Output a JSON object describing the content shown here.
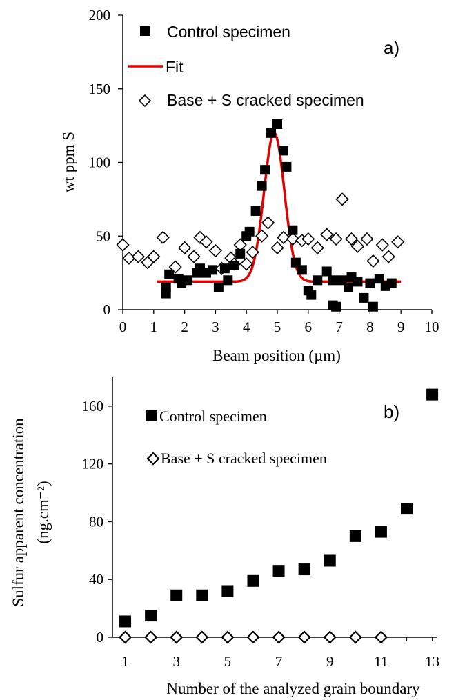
{
  "chart_data": [
    {
      "type": "scatter",
      "panel_label": "a)",
      "xlabel": "Beam position (µm)",
      "ylabel": "wt ppm S",
      "xlim": [
        0,
        10
      ],
      "ylim": [
        0,
        200
      ],
      "x_ticks": [
        "0",
        "1",
        "2",
        "3",
        "4",
        "5",
        "6",
        "7",
        "8",
        "9",
        "10"
      ],
      "y_ticks": [
        "0",
        "50",
        "100",
        "150",
        "200"
      ],
      "grid": false,
      "legend_position": "top",
      "series": [
        {
          "name": "Control specimen",
          "marker": "filled-square",
          "color": "#000000",
          "points": [
            [
              1.4,
              15
            ],
            [
              1.4,
              11
            ],
            [
              1.5,
              24
            ],
            [
              1.8,
              21
            ],
            [
              1.9,
              18
            ],
            [
              2.1,
              20
            ],
            [
              2.4,
              25
            ],
            [
              2.5,
              28
            ],
            [
              2.7,
              25
            ],
            [
              2.9,
              27
            ],
            [
              3.1,
              15
            ],
            [
              3.3,
              28
            ],
            [
              3.4,
              20
            ],
            [
              3.6,
              30
            ],
            [
              3.8,
              38
            ],
            [
              4.0,
              50
            ],
            [
              4.1,
              53
            ],
            [
              4.3,
              67
            ],
            [
              4.5,
              84
            ],
            [
              4.6,
              95
            ],
            [
              4.8,
              120
            ],
            [
              5.0,
              126
            ],
            [
              5.2,
              108
            ],
            [
              5.3,
              97
            ],
            [
              5.5,
              54
            ],
            [
              5.6,
              32
            ],
            [
              5.8,
              27
            ],
            [
              6.0,
              13
            ],
            [
              6.1,
              10
            ],
            [
              6.3,
              20
            ],
            [
              6.6,
              26
            ],
            [
              6.8,
              20
            ],
            [
              6.8,
              3
            ],
            [
              6.9,
              2
            ],
            [
              7.1,
              20
            ],
            [
              7.3,
              15
            ],
            [
              7.4,
              22
            ],
            [
              7.6,
              19
            ],
            [
              7.8,
              8
            ],
            [
              8.0,
              18
            ],
            [
              8.1,
              2
            ],
            [
              8.3,
              21
            ],
            [
              8.5,
              16
            ],
            [
              8.7,
              18
            ]
          ]
        },
        {
          "name": "Fit",
          "line": true,
          "color": "#e00000",
          "baseline": 19,
          "peak_height": 101,
          "peak_center": 4.9,
          "peak_sigma": 0.33,
          "x_range": [
            1.1,
            9.0
          ]
        },
        {
          "name": "Base + S cracked specimen",
          "marker": "open-diamond",
          "color": "#000000",
          "points": [
            [
              0.0,
              44
            ],
            [
              0.2,
              35
            ],
            [
              0.5,
              36
            ],
            [
              0.8,
              32
            ],
            [
              1.0,
              36
            ],
            [
              1.3,
              49
            ],
            [
              1.7,
              29
            ],
            [
              2.0,
              42
            ],
            [
              2.3,
              36
            ],
            [
              2.5,
              49
            ],
            [
              2.7,
              46
            ],
            [
              3.0,
              40
            ],
            [
              3.2,
              28
            ],
            [
              3.5,
              35
            ],
            [
              3.6,
              31
            ],
            [
              3.8,
              44
            ],
            [
              4.0,
              31
            ],
            [
              4.2,
              39
            ],
            [
              4.5,
              50
            ],
            [
              4.7,
              59
            ],
            [
              5.0,
              42
            ],
            [
              5.2,
              49
            ],
            [
              5.5,
              48
            ],
            [
              5.8,
              47
            ],
            [
              6.0,
              48
            ],
            [
              6.3,
              42
            ],
            [
              6.6,
              51
            ],
            [
              6.9,
              48
            ],
            [
              7.1,
              75
            ],
            [
              7.4,
              48
            ],
            [
              7.6,
              43
            ],
            [
              7.9,
              48
            ],
            [
              8.1,
              33
            ],
            [
              8.4,
              44
            ],
            [
              8.6,
              36
            ],
            [
              8.9,
              46
            ]
          ]
        }
      ]
    },
    {
      "type": "scatter",
      "panel_label": "b)",
      "xlabel": "Number of the analyzed grain boundary",
      "ylabel": [
        "Sulfur apparent concentration",
        "(ng.cm⁻²)"
      ],
      "xlim": [
        0.5,
        13.2
      ],
      "ylim": [
        0,
        180
      ],
      "x_ticks": [
        "1",
        "3",
        "5",
        "7",
        "9",
        "11",
        "13"
      ],
      "y_ticks": [
        "0",
        "40",
        "80",
        "120",
        "160"
      ],
      "grid": false,
      "legend_position": "top-left",
      "series": [
        {
          "name": "Control specimen",
          "marker": "filled-square",
          "color": "#000000",
          "points": [
            [
              1,
              11
            ],
            [
              2,
              15
            ],
            [
              3,
              29
            ],
            [
              4,
              29
            ],
            [
              5,
              32
            ],
            [
              6,
              39
            ],
            [
              7,
              46
            ],
            [
              8,
              47
            ],
            [
              9,
              53
            ],
            [
              10,
              70
            ],
            [
              11,
              73
            ],
            [
              12,
              89
            ],
            [
              13,
              168
            ]
          ]
        },
        {
          "name": "Base + S cracked specimen",
          "marker": "open-diamond",
          "color": "#000000",
          "points": [
            [
              1,
              0
            ],
            [
              2,
              0
            ],
            [
              3,
              0
            ],
            [
              4,
              0
            ],
            [
              5,
              0
            ],
            [
              6,
              0
            ],
            [
              7,
              0
            ],
            [
              8,
              0
            ],
            [
              9,
              0
            ],
            [
              10,
              0
            ],
            [
              11,
              0
            ]
          ]
        }
      ]
    }
  ]
}
